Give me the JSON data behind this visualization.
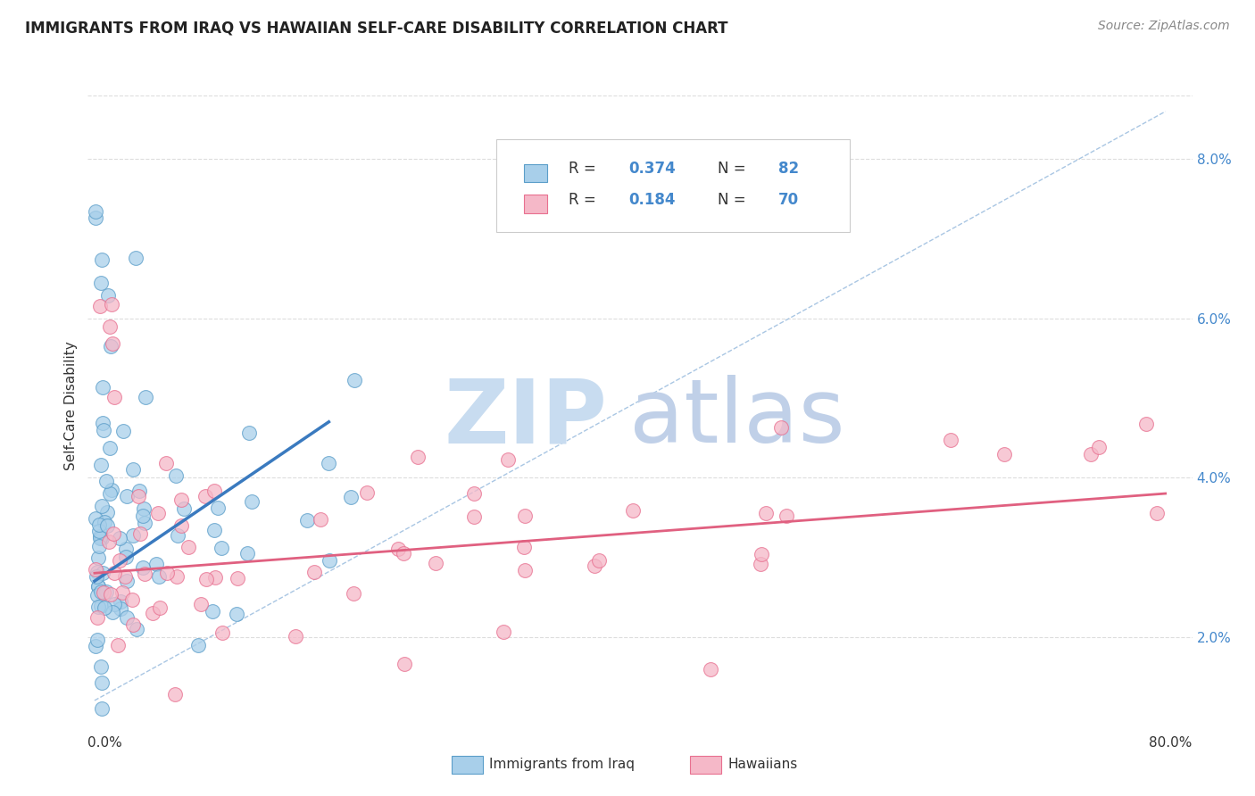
{
  "title": "IMMIGRANTS FROM IRAQ VS HAWAIIAN SELF-CARE DISABILITY CORRELATION CHART",
  "source": "Source: ZipAtlas.com",
  "xlabel_blue": "Immigrants from Iraq",
  "xlabel_pink": "Hawaiians",
  "ylabel": "Self-Care Disability",
  "R_blue": "0.374",
  "N_blue": "82",
  "R_pink": "0.184",
  "N_pink": "70",
  "xlim": [
    -0.005,
    0.82
  ],
  "ylim": [
    0.01,
    0.088
  ],
  "yticks": [
    0.02,
    0.04,
    0.06,
    0.08
  ],
  "ytick_labels": [
    "2.0%",
    "4.0%",
    "6.0%",
    "8.0%"
  ],
  "xtick_left_label": "0.0%",
  "xtick_right_label": "80.0%",
  "color_blue_fill": "#A8CFEA",
  "color_blue_edge": "#5B9EC9",
  "color_blue_line": "#3A7ABF",
  "color_pink_fill": "#F5B8C8",
  "color_pink_edge": "#E87090",
  "color_pink_line": "#E06080",
  "color_diag": "#A0C0E0",
  "background_color": "#FFFFFF",
  "grid_color": "#DDDDDD",
  "title_color": "#222222",
  "source_color": "#888888",
  "axis_label_color": "#4488CC",
  "legend_text_color": "#333333",
  "watermark_ZIP_color": "#C8DCF0",
  "watermark_atlas_color": "#C0D0E8"
}
